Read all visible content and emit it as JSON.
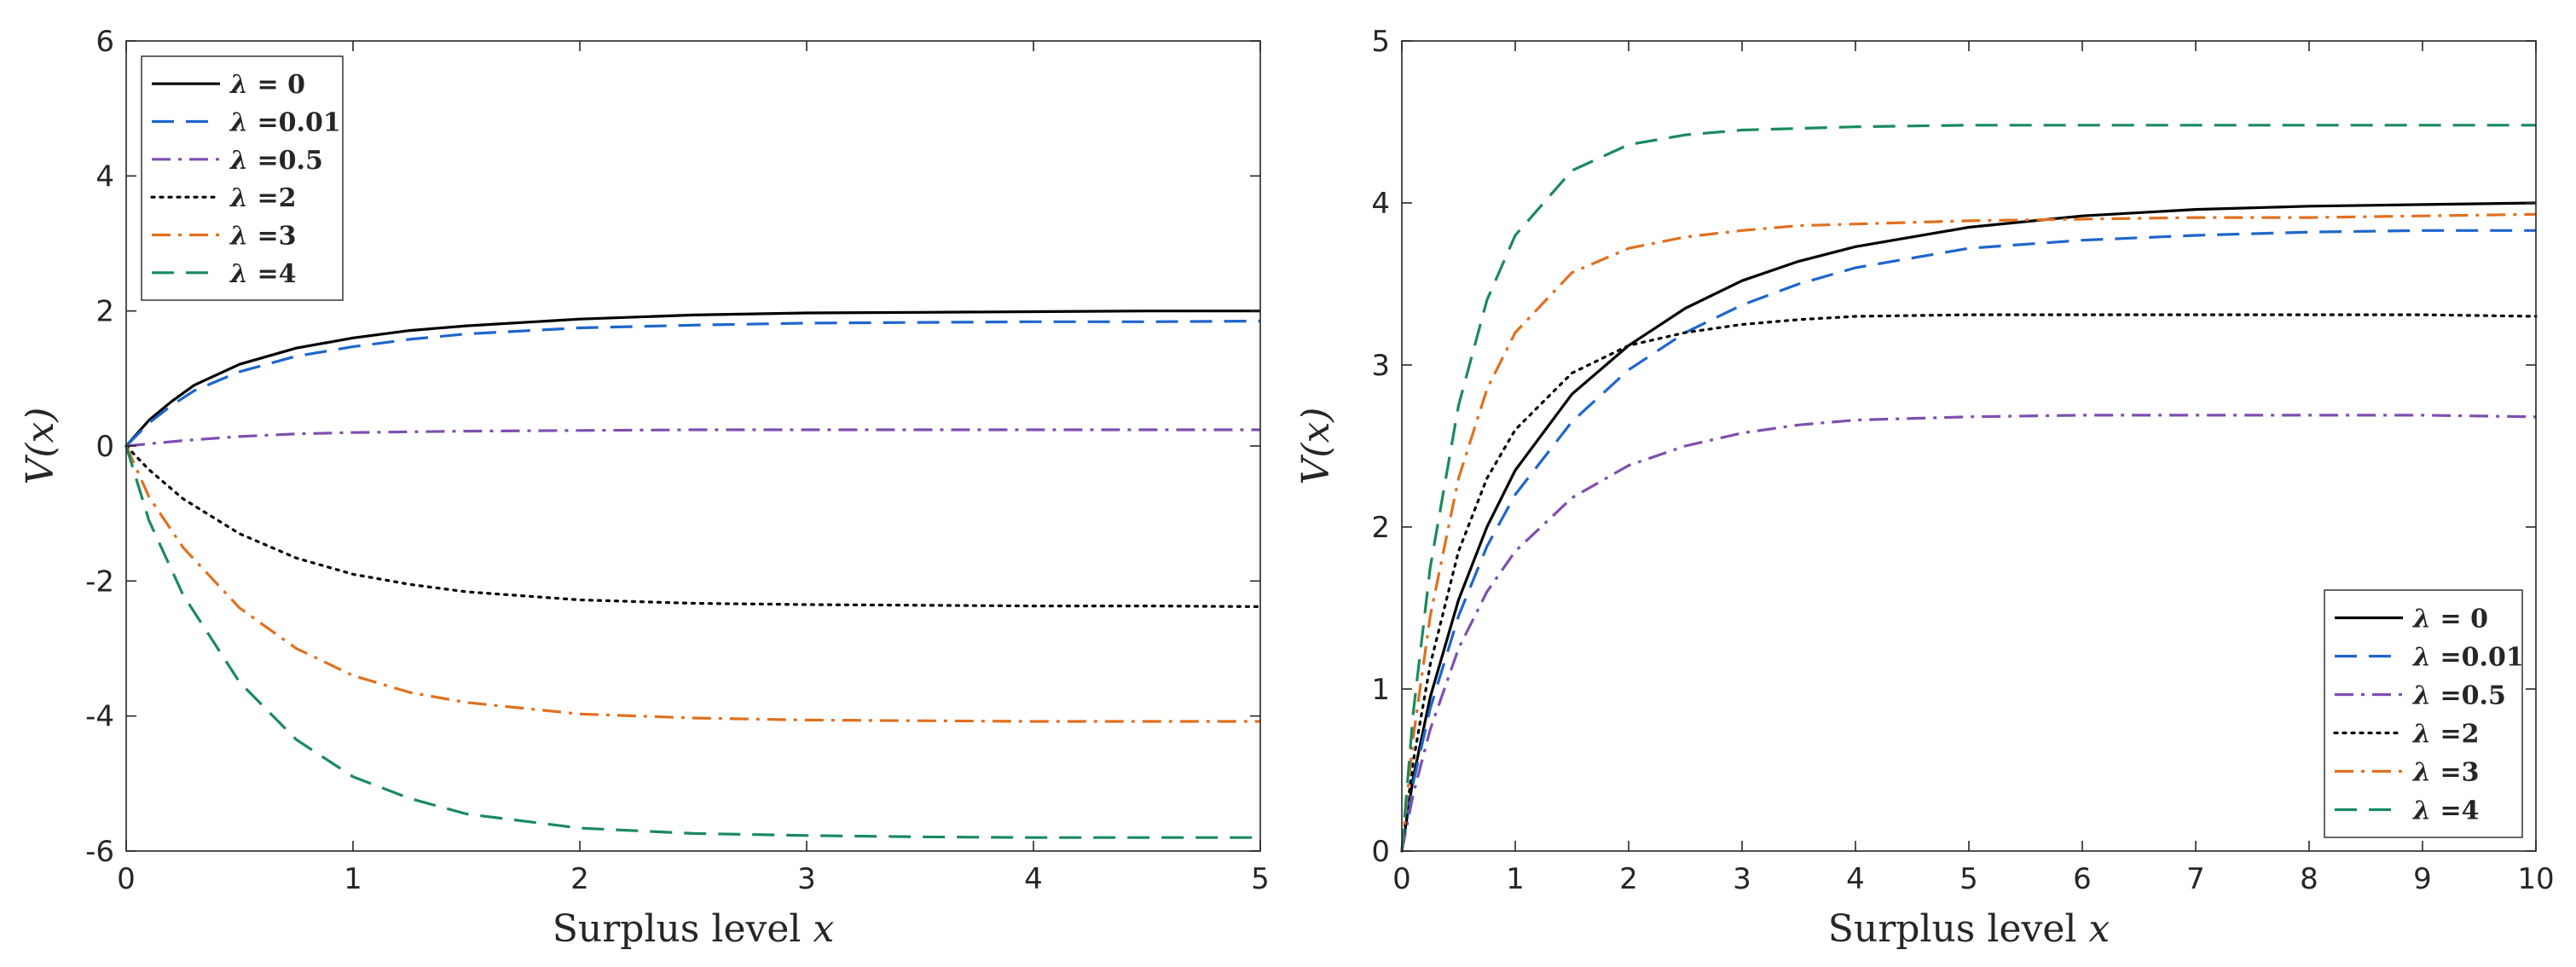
{
  "chart_data": [
    {
      "type": "line",
      "xlabel": "Surplus level x",
      "ylabel": "V(x)",
      "xlim": [
        0,
        5
      ],
      "ylim": [
        -6,
        6
      ],
      "xticks": [
        "0",
        "1",
        "2",
        "3",
        "4",
        "5"
      ],
      "yticks": [
        "-6",
        "-4",
        "-2",
        "0",
        "2",
        "4",
        "6"
      ],
      "xtick_values": [
        0,
        1,
        2,
        3,
        4,
        5
      ],
      "ytick_values": [
        -6,
        -4,
        -2,
        0,
        2,
        4,
        6
      ],
      "grid": false,
      "legend_position": "top-left",
      "series": [
        {
          "name": "λ = 0",
          "color": "#000000",
          "dash": "solid",
          "x": [
            0,
            0.1,
            0.2,
            0.3,
            0.5,
            0.75,
            1,
            1.25,
            1.5,
            2,
            2.5,
            3,
            3.5,
            4,
            4.5,
            5
          ],
          "y": [
            0,
            0.38,
            0.66,
            0.9,
            1.21,
            1.45,
            1.6,
            1.71,
            1.78,
            1.88,
            1.94,
            1.97,
            1.98,
            1.99,
            2.0,
            2.0
          ]
        },
        {
          "name": "λ =0.01",
          "color": "#1f66cc",
          "dash": "dashed",
          "x": [
            0,
            0.1,
            0.2,
            0.3,
            0.5,
            0.75,
            1,
            1.25,
            1.5,
            2,
            2.5,
            3,
            3.5,
            4,
            4.5,
            5
          ],
          "y": [
            0,
            0.34,
            0.6,
            0.82,
            1.1,
            1.33,
            1.47,
            1.58,
            1.66,
            1.75,
            1.79,
            1.82,
            1.83,
            1.84,
            1.84,
            1.85
          ]
        },
        {
          "name": "λ =0.5",
          "color": "#7e4fb0",
          "dash": "dashdot",
          "x": [
            0,
            0.25,
            0.5,
            0.75,
            1,
            1.5,
            2,
            2.5,
            3,
            4,
            5
          ],
          "y": [
            0,
            0.08,
            0.14,
            0.18,
            0.2,
            0.22,
            0.23,
            0.24,
            0.24,
            0.24,
            0.24
          ]
        },
        {
          "name": "λ =2",
          "color": "#000000",
          "dash": "dotted",
          "x": [
            0,
            0.1,
            0.25,
            0.5,
            0.75,
            1,
            1.25,
            1.5,
            2,
            2.5,
            3,
            3.5,
            4,
            4.5,
            5
          ],
          "y": [
            0,
            -0.35,
            -0.78,
            -1.3,
            -1.66,
            -1.9,
            -2.05,
            -2.16,
            -2.28,
            -2.33,
            -2.35,
            -2.36,
            -2.37,
            -2.37,
            -2.38
          ]
        },
        {
          "name": "λ =3",
          "color": "#e0701e",
          "dash": "dashdot",
          "x": [
            0,
            0.1,
            0.25,
            0.5,
            0.75,
            1,
            1.25,
            1.5,
            2,
            2.5,
            3,
            3.5,
            4,
            4.5,
            5
          ],
          "y": [
            0,
            -0.75,
            -1.5,
            -2.4,
            -3.0,
            -3.4,
            -3.65,
            -3.8,
            -3.97,
            -4.03,
            -4.06,
            -4.07,
            -4.08,
            -4.08,
            -4.08
          ]
        },
        {
          "name": "λ =4",
          "color": "#1a8a5e",
          "dash": "dashed",
          "x": [
            0,
            0.1,
            0.25,
            0.5,
            0.75,
            1,
            1.25,
            1.5,
            2,
            2.5,
            3,
            3.5,
            4,
            4.5,
            5
          ],
          "y": [
            0,
            -1.1,
            -2.2,
            -3.5,
            -4.35,
            -4.9,
            -5.22,
            -5.45,
            -5.66,
            -5.74,
            -5.77,
            -5.79,
            -5.8,
            -5.8,
            -5.8
          ]
        }
      ]
    },
    {
      "type": "line",
      "xlabel": "Surplus level x",
      "ylabel": "V(x)",
      "xlim": [
        0,
        10
      ],
      "ylim": [
        0,
        5
      ],
      "xticks": [
        "0",
        "1",
        "2",
        "3",
        "4",
        "5",
        "6",
        "7",
        "8",
        "9",
        "10"
      ],
      "yticks": [
        "0",
        "1",
        "2",
        "3",
        "4",
        "5"
      ],
      "xtick_values": [
        0,
        1,
        2,
        3,
        4,
        5,
        6,
        7,
        8,
        9,
        10
      ],
      "ytick_values": [
        0,
        1,
        2,
        3,
        4,
        5
      ],
      "grid": false,
      "legend_position": "bottom-right",
      "series": [
        {
          "name": "λ = 0",
          "color": "#000000",
          "dash": "solid",
          "x": [
            0,
            0.1,
            0.25,
            0.5,
            0.75,
            1,
            1.5,
            2,
            2.5,
            3,
            3.5,
            4,
            5,
            6,
            7,
            8,
            9,
            10
          ],
          "y": [
            0,
            0.45,
            0.95,
            1.55,
            2.0,
            2.35,
            2.82,
            3.12,
            3.35,
            3.52,
            3.64,
            3.73,
            3.85,
            3.92,
            3.96,
            3.98,
            3.99,
            4.0
          ]
        },
        {
          "name": "λ =0.01",
          "color": "#1f66cc",
          "dash": "dashed",
          "x": [
            0,
            0.1,
            0.25,
            0.5,
            0.75,
            1,
            1.5,
            2,
            2.5,
            3,
            3.5,
            4,
            5,
            6,
            7,
            8,
            9,
            10
          ],
          "y": [
            0,
            0.42,
            0.88,
            1.45,
            1.88,
            2.2,
            2.65,
            2.97,
            3.2,
            3.37,
            3.5,
            3.6,
            3.72,
            3.77,
            3.8,
            3.82,
            3.83,
            3.83
          ]
        },
        {
          "name": "λ =0.5",
          "color": "#7e4fb0",
          "dash": "dashdot",
          "x": [
            0,
            0.1,
            0.25,
            0.5,
            0.75,
            1,
            1.5,
            2,
            2.5,
            3,
            3.5,
            4,
            5,
            6,
            7,
            8,
            9,
            10
          ],
          "y": [
            0,
            0.35,
            0.75,
            1.25,
            1.6,
            1.85,
            2.18,
            2.38,
            2.5,
            2.58,
            2.63,
            2.66,
            2.68,
            2.69,
            2.69,
            2.69,
            2.69,
            2.68
          ]
        },
        {
          "name": "λ =2",
          "color": "#000000",
          "dash": "dotted",
          "x": [
            0,
            0.1,
            0.25,
            0.5,
            0.75,
            1,
            1.5,
            2,
            2.5,
            3,
            3.5,
            4,
            5,
            6,
            7,
            8,
            9,
            10
          ],
          "y": [
            0,
            0.55,
            1.15,
            1.85,
            2.3,
            2.6,
            2.95,
            3.12,
            3.2,
            3.25,
            3.28,
            3.3,
            3.31,
            3.31,
            3.31,
            3.31,
            3.31,
            3.3
          ]
        },
        {
          "name": "λ =3",
          "color": "#e0701e",
          "dash": "dashdot",
          "x": [
            0,
            0.1,
            0.25,
            0.5,
            0.75,
            1,
            1.5,
            2,
            2.5,
            3,
            3.5,
            4,
            5,
            6,
            7,
            8,
            9,
            10
          ],
          "y": [
            0,
            0.7,
            1.45,
            2.3,
            2.85,
            3.2,
            3.57,
            3.72,
            3.79,
            3.83,
            3.86,
            3.87,
            3.89,
            3.9,
            3.91,
            3.91,
            3.92,
            3.93
          ]
        },
        {
          "name": "λ =4",
          "color": "#1a8a5e",
          "dash": "dashed",
          "x": [
            0,
            0.1,
            0.25,
            0.5,
            0.75,
            1,
            1.5,
            2,
            2.5,
            3,
            3.5,
            4,
            5,
            6,
            7,
            8,
            9,
            10
          ],
          "y": [
            0,
            0.85,
            1.75,
            2.75,
            3.4,
            3.8,
            4.2,
            4.36,
            4.42,
            4.45,
            4.46,
            4.47,
            4.48,
            4.48,
            4.48,
            4.48,
            4.48,
            4.48
          ]
        }
      ]
    }
  ]
}
